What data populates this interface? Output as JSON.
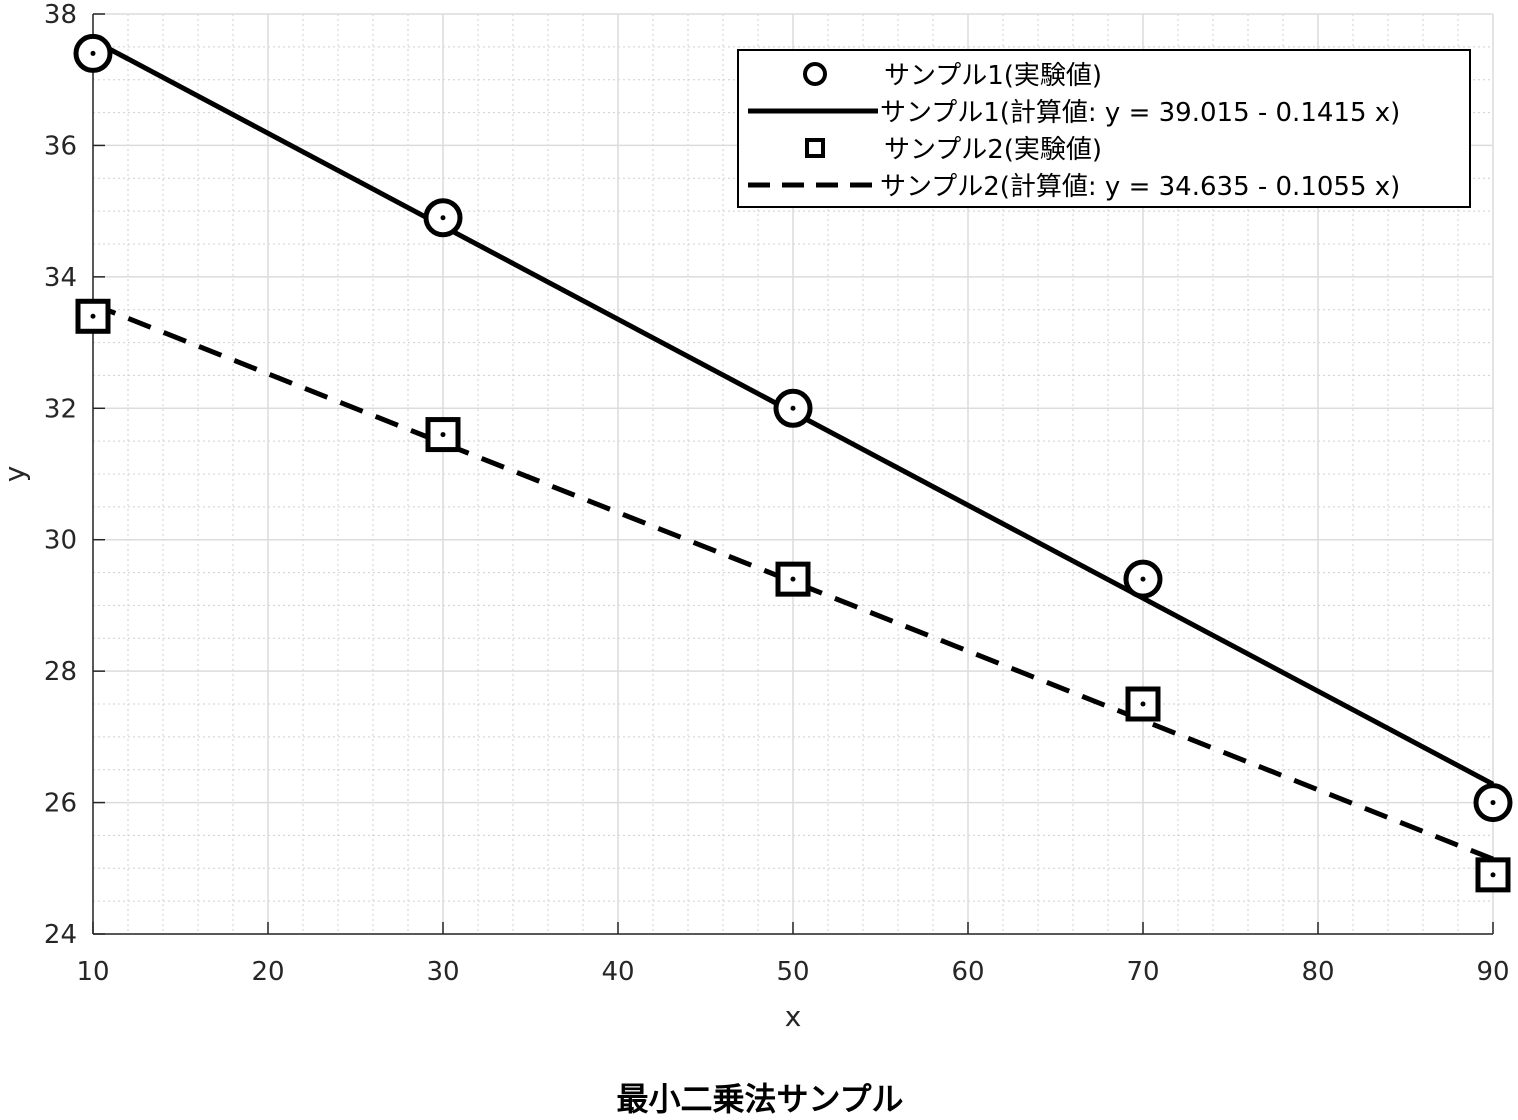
{
  "chart_data": {
    "type": "line",
    "title": "最小二乗法サンプル",
    "xlabel": "x",
    "ylabel": "y",
    "xlim": [
      10,
      90
    ],
    "ylim": [
      24,
      38
    ],
    "xticks": [
      10,
      20,
      30,
      40,
      50,
      60,
      70,
      80,
      90
    ],
    "yticks": [
      24,
      26,
      28,
      30,
      32,
      34,
      36,
      38
    ],
    "grid": true,
    "minor_grid": true,
    "legend_position": "top-right",
    "series": [
      {
        "name": "サンプル1(実験値)",
        "kind": "scatter",
        "marker": "circle",
        "x": [
          10,
          30,
          50,
          70,
          90
        ],
        "y": [
          37.4,
          34.9,
          32.0,
          29.4,
          26.0
        ]
      },
      {
        "name": "サンプル1(計算値: y = 39.015 - 0.1415 x)",
        "kind": "line",
        "style": "solid",
        "intercept": 39.015,
        "slope": -0.1415,
        "x": [
          10,
          90
        ],
        "y": [
          37.6,
          26.28
        ]
      },
      {
        "name": "サンプル2(実験値)",
        "kind": "scatter",
        "marker": "square",
        "x": [
          10,
          30,
          50,
          70,
          90
        ],
        "y": [
          33.4,
          31.6,
          29.4,
          27.5,
          24.9
        ]
      },
      {
        "name": "サンプル2(計算値: y = 34.635 - 0.1055 x)",
        "kind": "line",
        "style": "dashed",
        "intercept": 34.635,
        "slope": -0.1055,
        "x": [
          10,
          90
        ],
        "y": [
          33.58,
          25.14
        ]
      }
    ],
    "colors": {
      "line": "#000000",
      "grid": "#dcdcdc",
      "axis": "#262626"
    }
  }
}
